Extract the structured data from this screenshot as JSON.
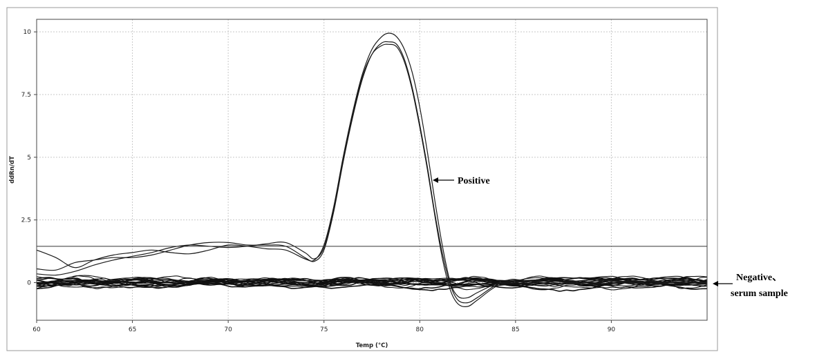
{
  "chart_data": {
    "type": "line",
    "title": "",
    "xlabel": "Temp (°C)",
    "ylabel": "ddRn/dT",
    "xlim": [
      60,
      95
    ],
    "ylim": [
      -1.5,
      10.5
    ],
    "xticks": [
      60,
      65,
      70,
      75,
      80,
      85,
      90
    ],
    "yticks": [
      0,
      2.5,
      5,
      7.5,
      10
    ],
    "xtick_labels": [
      "60",
      "65",
      "70",
      "75",
      "80",
      "85",
      "90"
    ],
    "ytick_labels": [
      "0",
      "2.5",
      "5",
      "7.5",
      "10"
    ],
    "grid": true,
    "legend": "none",
    "threshold": 1.45,
    "series": [
      {
        "x": [
          60,
          61,
          62,
          63,
          64,
          65,
          66,
          67,
          68,
          69,
          70,
          71,
          72,
          73,
          74,
          74.5,
          75,
          75.5,
          76,
          76.5,
          77,
          77.5,
          78,
          78.4,
          78.8,
          79.2,
          79.6,
          80,
          80.4,
          80.8,
          81.2,
          81.6,
          82,
          82.5,
          83,
          84,
          85,
          86,
          87,
          88,
          89,
          90,
          91,
          92,
          93,
          94,
          95
        ],
        "y": [
          1.3,
          1.0,
          0.6,
          0.9,
          1.1,
          1.2,
          1.3,
          1.2,
          1.15,
          1.3,
          1.5,
          1.45,
          1.35,
          1.3,
          0.95,
          0.9,
          1.5,
          3.0,
          5.0,
          6.8,
          8.3,
          9.3,
          9.8,
          9.95,
          9.8,
          9.3,
          8.4,
          7.0,
          5.2,
          3.2,
          1.4,
          0.0,
          -0.55,
          -0.6,
          -0.4,
          -0.05,
          0.1,
          0.05,
          -0.05,
          0.05,
          0.1,
          0.0,
          0.05,
          -0.05,
          0.0,
          0.05,
          0.0
        ]
      },
      {
        "x": [
          60,
          61,
          62,
          63,
          64,
          65,
          66,
          67,
          68,
          69,
          70,
          71,
          72,
          73,
          74,
          74.5,
          75,
          75.5,
          76,
          76.5,
          77,
          77.5,
          78,
          78.4,
          78.8,
          79.2,
          79.6,
          80,
          80.4,
          80.8,
          81.2,
          81.6,
          82,
          82.5,
          83,
          84,
          85,
          86,
          87,
          88,
          89,
          90,
          91,
          92,
          93,
          94,
          95
        ],
        "y": [
          0.55,
          0.5,
          0.8,
          0.9,
          1.0,
          1.0,
          1.1,
          1.3,
          1.5,
          1.6,
          1.6,
          1.5,
          1.5,
          1.45,
          1.0,
          0.85,
          1.3,
          2.8,
          4.8,
          6.6,
          8.1,
          9.1,
          9.55,
          9.6,
          9.5,
          8.9,
          7.8,
          6.3,
          4.6,
          2.7,
          1.1,
          -0.1,
          -0.7,
          -0.8,
          -0.6,
          -0.1,
          0.05,
          0.1,
          0.0,
          -0.05,
          0.05,
          0.1,
          -0.05,
          0.05,
          0.0,
          0.0,
          -0.05
        ]
      },
      {
        "x": [
          60,
          61,
          62,
          63,
          64,
          65,
          66,
          67,
          68,
          69,
          70,
          71,
          72,
          73,
          74,
          74.5,
          75,
          75.5,
          76,
          76.5,
          77,
          77.5,
          78,
          78.4,
          78.8,
          79.2,
          79.6,
          80,
          80.4,
          80.8,
          81.2,
          81.6,
          82,
          82.5,
          83,
          84,
          85,
          86,
          87,
          88,
          89,
          90,
          91,
          92,
          93,
          94,
          95
        ],
        "y": [
          0.35,
          0.3,
          0.45,
          0.7,
          0.9,
          1.05,
          1.2,
          1.4,
          1.5,
          1.45,
          1.4,
          1.45,
          1.55,
          1.6,
          1.2,
          0.95,
          1.4,
          2.9,
          4.9,
          6.7,
          8.2,
          9.1,
          9.45,
          9.5,
          9.4,
          8.8,
          7.7,
          6.2,
          4.5,
          2.6,
          0.9,
          -0.3,
          -0.85,
          -0.95,
          -0.7,
          -0.15,
          0.0,
          0.05,
          0.05,
          0.0,
          -0.05,
          0.05,
          0.0,
          0.05,
          -0.05,
          0.0,
          0.0
        ]
      }
    ]
  },
  "annotations": {
    "positive": "Positive",
    "negative_line1": "Negative、",
    "negative_line2": "serum sample"
  }
}
